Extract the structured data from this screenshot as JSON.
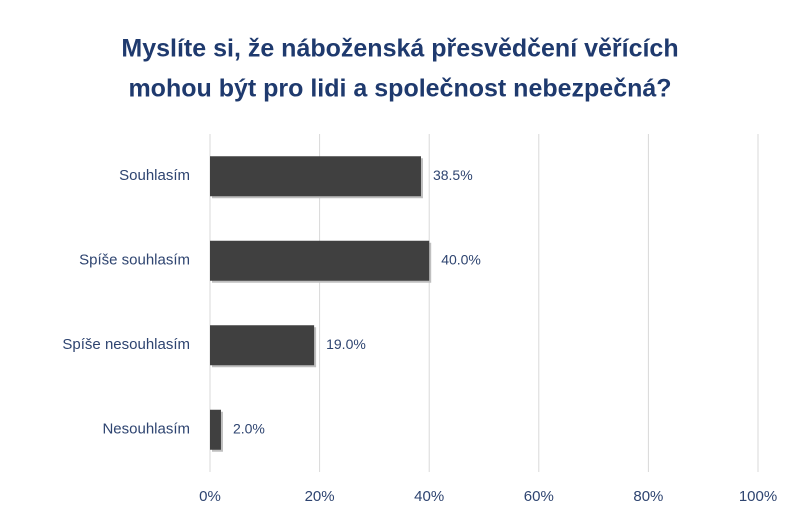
{
  "chart_data": {
    "type": "barh",
    "title": [
      "Myslíte si, že náboženská přesvědčení věřících",
      "mohou být pro lidi a společnost nebezpečná?"
    ],
    "categories": [
      "Souhlasím",
      "Spíše souhlasím",
      "Spíše nesouhlasím",
      "Nesouhlasím"
    ],
    "values": [
      38.5,
      40.0,
      19.0,
      2.0
    ],
    "value_labels": [
      "38.5%",
      "40.0%",
      "19.0%",
      "2.0%"
    ],
    "color": "#404040",
    "xlim": [
      0,
      100
    ],
    "xticks": [
      {
        "value": 0,
        "label": "0%"
      },
      {
        "value": 20,
        "label": "20%"
      },
      {
        "value": 40,
        "label": "40%"
      },
      {
        "value": 60,
        "label": "60%"
      },
      {
        "value": 80,
        "label": "80%"
      },
      {
        "value": 100,
        "label": "100%"
      }
    ],
    "grid": true
  }
}
